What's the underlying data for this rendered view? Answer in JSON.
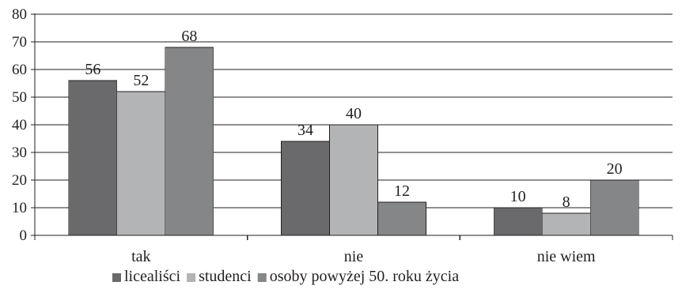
{
  "chart_data": {
    "type": "bar",
    "title": "",
    "xlabel": "",
    "ylabel": "",
    "categories": [
      "tak",
      "nie",
      "nie wiem"
    ],
    "series": [
      {
        "name": "licealiści",
        "values": [
          56,
          34,
          10
        ],
        "color": "#6a6a6c"
      },
      {
        "name": "studenci",
        "values": [
          52,
          40,
          8
        ],
        "color": "#b3b4b6"
      },
      {
        "name": "osoby powyżej 50. roku życia",
        "values": [
          68,
          12,
          20
        ],
        "color": "#858688"
      }
    ],
    "ylim": [
      0,
      80
    ],
    "yticks": [
      0,
      10,
      20,
      30,
      40,
      50,
      60,
      70,
      80
    ],
    "grid": true,
    "legend_position": "bottom"
  }
}
